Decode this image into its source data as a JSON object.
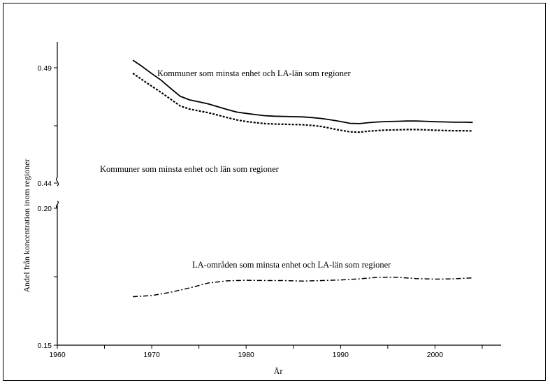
{
  "chart_data": {
    "type": "line",
    "xlabel": "År",
    "ylabel": "Andel från koncentration inom regioner",
    "x_ticks": [
      1960,
      1970,
      1980,
      1990,
      2000
    ],
    "xlim": [
      1960,
      2007
    ],
    "upper_panel": {
      "ylim": [
        0.44,
        0.49
      ],
      "y_ticks": [
        "0.44",
        "0.49"
      ],
      "series": [
        {
          "name": "Kommuner som minsta enhet och LA-län som regioner",
          "style": "solid",
          "x": [
            1968,
            1969,
            1970,
            1971,
            1972,
            1973,
            1974,
            1975,
            1976,
            1977,
            1978,
            1979,
            1980,
            1981,
            1982,
            1983,
            1984,
            1985,
            1986,
            1987,
            1988,
            1989,
            1990,
            1991,
            1992,
            1993,
            1994,
            1995,
            1996,
            1997,
            1998,
            1999,
            2000,
            2001,
            2002,
            2003,
            2004
          ],
          "values": [
            0.4933,
            0.4905,
            0.4875,
            0.4846,
            0.4811,
            0.4777,
            0.4761,
            0.4752,
            0.4743,
            0.4731,
            0.4719,
            0.4708,
            0.4702,
            0.4697,
            0.4692,
            0.469,
            0.4689,
            0.4688,
            0.4687,
            0.4684,
            0.468,
            0.4674,
            0.4667,
            0.4659,
            0.4658,
            0.4662,
            0.4665,
            0.4667,
            0.4668,
            0.4669,
            0.4669,
            0.4668,
            0.4666,
            0.4665,
            0.4664,
            0.4664,
            0.4663
          ]
        },
        {
          "name": "Kommuner som minsta enhet och län som regioner",
          "style": "dotted",
          "x": [
            1968,
            1969,
            1970,
            1971,
            1972,
            1973,
            1974,
            1975,
            1976,
            1977,
            1978,
            1979,
            1980,
            1981,
            1982,
            1983,
            1984,
            1985,
            1986,
            1987,
            1988,
            1989,
            1990,
            1991,
            1992,
            1993,
            1994,
            1995,
            1996,
            1997,
            1998,
            1999,
            2000,
            2001,
            2002,
            2003,
            2004
          ],
          "values": [
            0.4876,
            0.4848,
            0.482,
            0.4793,
            0.4764,
            0.4735,
            0.4721,
            0.4713,
            0.4705,
            0.4695,
            0.4684,
            0.4674,
            0.4667,
            0.4662,
            0.4658,
            0.4656,
            0.4655,
            0.4654,
            0.4653,
            0.465,
            0.4645,
            0.4637,
            0.4629,
            0.4622,
            0.4621,
            0.4625,
            0.4628,
            0.463,
            0.4631,
            0.4632,
            0.4632,
            0.4631,
            0.4629,
            0.4628,
            0.4627,
            0.4627,
            0.4626
          ]
        }
      ]
    },
    "lower_panel": {
      "ylim": [
        0.15,
        0.2
      ],
      "y_ticks": [
        "0.15",
        "0.20"
      ],
      "series": [
        {
          "name": "LA-områden som minsta enhet och LA-län som regioner",
          "style": "dash-dot",
          "x": [
            1968,
            1970,
            1972,
            1974,
            1976,
            1978,
            1980,
            1982,
            1984,
            1986,
            1988,
            1990,
            1992,
            1994,
            1996,
            1998,
            2000,
            2002,
            2004
          ],
          "values": [
            0.1677,
            0.1681,
            0.1693,
            0.1709,
            0.1727,
            0.1735,
            0.1737,
            0.1736,
            0.1736,
            0.1734,
            0.1736,
            0.1738,
            0.1742,
            0.1748,
            0.1748,
            0.1743,
            0.1741,
            0.1742,
            0.1746
          ]
        }
      ]
    }
  }
}
